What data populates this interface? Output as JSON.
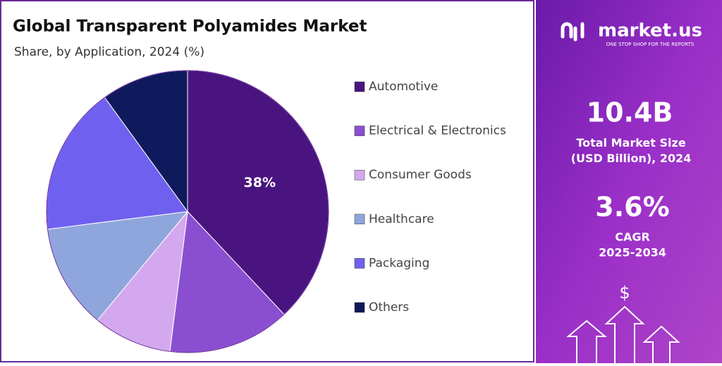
{
  "chart_data": {
    "type": "pie",
    "title": "Global Transparent Polyamides Market",
    "subtitle": "Share, by Application, 2024 (%)",
    "categories": [
      "Automotive",
      "Electrical & Electronics",
      "Consumer Goods",
      "Healthcare",
      "Packaging",
      "Others"
    ],
    "values": [
      38,
      14,
      9,
      12,
      17,
      10
    ],
    "value_labels": [
      "38%",
      null,
      null,
      null,
      null,
      null
    ],
    "colors": [
      "#4a1480",
      "#8a4fd0",
      "#d4a8ee",
      "#8fa6dc",
      "#7060f0",
      "#0f1a5c"
    ],
    "legend": "right"
  },
  "side_panel": {
    "brand": "market.us",
    "tagline": "ONE STOP SHOP FOR THE REPORTS",
    "market_size": "10.4B",
    "market_size_label": "Total Market Size (USD Billion), 2024",
    "cagr": "3.6%",
    "cagr_label": "CAGR",
    "cagr_period": "2025-2034",
    "icon": "$"
  }
}
